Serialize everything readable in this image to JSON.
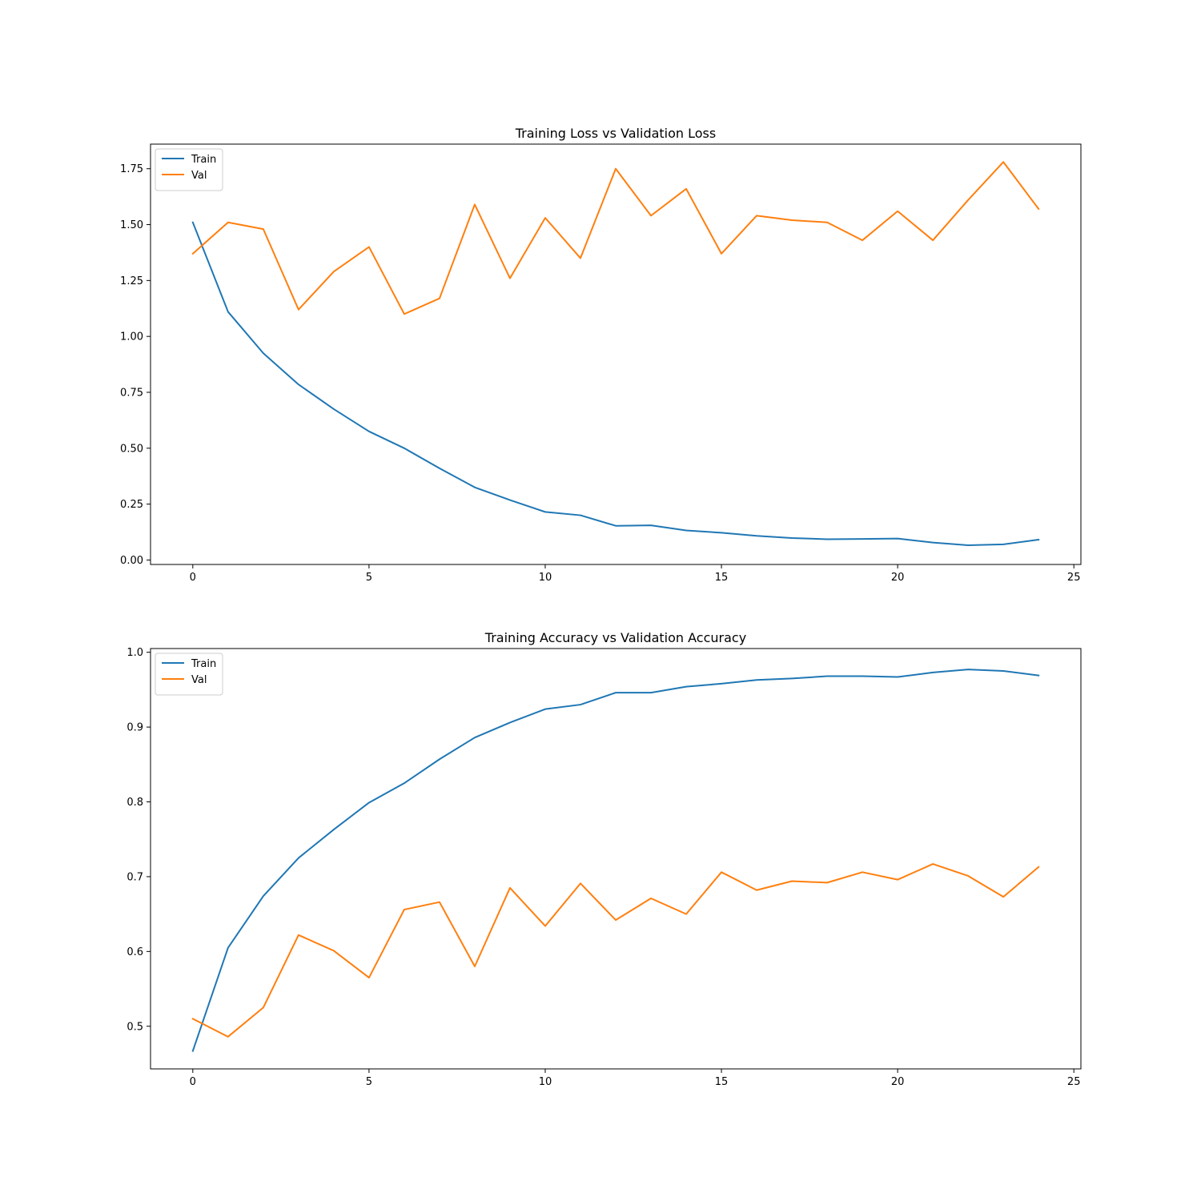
{
  "chart_data": [
    {
      "type": "line",
      "title": "Training Loss vs Validation Loss",
      "xlabel": "",
      "ylabel": "",
      "xlim": [
        -1.2,
        25.2
      ],
      "ylim": [
        -0.02,
        1.86
      ],
      "xticks": [
        0,
        5,
        10,
        15,
        20,
        25
      ],
      "xtick_labels": [
        "0",
        "5",
        "10",
        "15",
        "20",
        "25"
      ],
      "yticks": [
        0.0,
        0.25,
        0.5,
        0.75,
        1.0,
        1.25,
        1.5,
        1.75
      ],
      "ytick_labels": [
        "0.00",
        "0.25",
        "0.50",
        "0.75",
        "1.00",
        "1.25",
        "1.50",
        "1.75"
      ],
      "grid": false,
      "legend_position": "top-left",
      "x": [
        0,
        1,
        2,
        3,
        4,
        5,
        6,
        7,
        8,
        9,
        10,
        11,
        12,
        13,
        14,
        15,
        16,
        17,
        18,
        19,
        20,
        21,
        22,
        23,
        24
      ],
      "series": [
        {
          "name": "Train",
          "color": "#1f77b4",
          "values": [
            1.51,
            1.11,
            0.925,
            0.785,
            0.675,
            0.575,
            0.5,
            0.41,
            0.325,
            0.268,
            0.215,
            0.2,
            0.153,
            0.155,
            0.132,
            0.122,
            0.108,
            0.098,
            0.093,
            0.094,
            0.096,
            0.078,
            0.066,
            0.07,
            0.091
          ]
        },
        {
          "name": "Val",
          "color": "#ff7f0e",
          "values": [
            1.37,
            1.51,
            1.48,
            1.12,
            1.29,
            1.4,
            1.1,
            1.17,
            1.59,
            1.26,
            1.53,
            1.35,
            1.75,
            1.54,
            1.66,
            1.37,
            1.54,
            1.52,
            1.51,
            1.43,
            1.56,
            1.43,
            1.61,
            1.78,
            1.57
          ]
        }
      ]
    },
    {
      "type": "line",
      "title": "Training Accuracy vs Validation Accuracy",
      "xlabel": "",
      "ylabel": "",
      "xlim": [
        -1.2,
        25.2
      ],
      "ylim": [
        0.443,
        1.005
      ],
      "xticks": [
        0,
        5,
        10,
        15,
        20,
        25
      ],
      "xtick_labels": [
        "0",
        "5",
        "10",
        "15",
        "20",
        "25"
      ],
      "yticks": [
        0.5,
        0.6,
        0.7,
        0.8,
        0.9,
        1.0
      ],
      "ytick_labels": [
        "0.5",
        "0.6",
        "0.7",
        "0.8",
        "0.9",
        "1.0"
      ],
      "grid": false,
      "legend_position": "top-left",
      "x": [
        0,
        1,
        2,
        3,
        4,
        5,
        6,
        7,
        8,
        9,
        10,
        11,
        12,
        13,
        14,
        15,
        16,
        17,
        18,
        19,
        20,
        21,
        22,
        23,
        24
      ],
      "series": [
        {
          "name": "Train",
          "color": "#1f77b4",
          "values": [
            0.467,
            0.605,
            0.674,
            0.725,
            0.763,
            0.799,
            0.825,
            0.857,
            0.886,
            0.906,
            0.924,
            0.93,
            0.946,
            0.946,
            0.954,
            0.958,
            0.963,
            0.965,
            0.968,
            0.968,
            0.967,
            0.973,
            0.977,
            0.975,
            0.969
          ]
        },
        {
          "name": "Val",
          "color": "#ff7f0e",
          "values": [
            0.51,
            0.486,
            0.525,
            0.622,
            0.601,
            0.565,
            0.656,
            0.666,
            0.58,
            0.685,
            0.634,
            0.691,
            0.642,
            0.671,
            0.65,
            0.706,
            0.682,
            0.694,
            0.692,
            0.706,
            0.696,
            0.717,
            0.701,
            0.673,
            0.713
          ]
        }
      ]
    }
  ]
}
